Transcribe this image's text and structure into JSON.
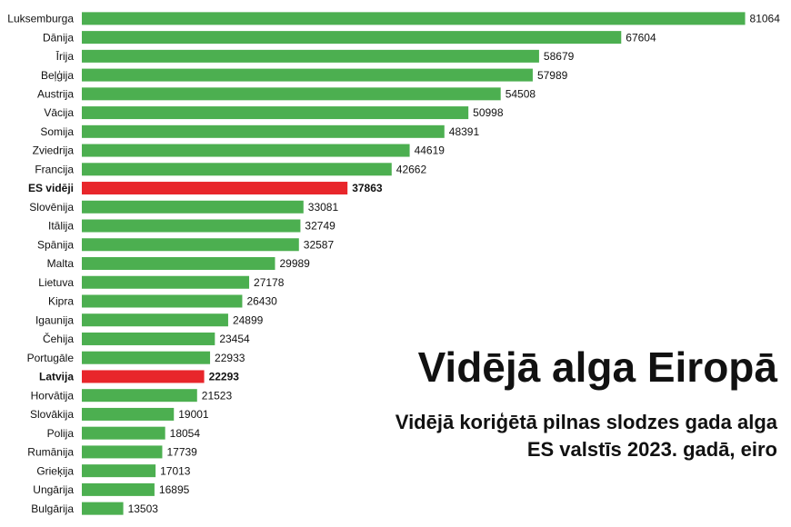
{
  "chart_data": {
    "type": "bar",
    "orientation": "horizontal",
    "title": "Vidējā alga Eiropā",
    "subtitle": [
      "Vidējā koriģētā pilnas slodzes gada alga",
      "ES valstīs 2023. gadā, eiro"
    ],
    "categories": [
      "Luksemburga",
      "Dānija",
      "Īrija",
      "Beļģija",
      "Austrija",
      "Vācija",
      "Somija",
      "Zviedrija",
      "Francija",
      "ES vidēji",
      "Slovēnija",
      "Itālija",
      "Spānija",
      "Malta",
      "Lietuva",
      "Kipra",
      "Igaunija",
      "Čehija",
      "Portugāle",
      "Latvija",
      "Horvātija",
      "Slovākija",
      "Polija",
      "Rumānija",
      "Grieķija",
      "Ungārija",
      "Bulgārija"
    ],
    "values": [
      81064,
      67604,
      58679,
      57989,
      54508,
      50998,
      48391,
      44619,
      42662,
      37863,
      33081,
      32749,
      32587,
      29989,
      27178,
      26430,
      24899,
      23454,
      22933,
      22293,
      21523,
      19001,
      18054,
      17739,
      17013,
      16895,
      13503
    ],
    "colors": [
      "#4caf50",
      "#4caf50",
      "#4caf50",
      "#4caf50",
      "#4caf50",
      "#4caf50",
      "#4caf50",
      "#4caf50",
      "#4caf50",
      "#e8262b",
      "#4caf50",
      "#4caf50",
      "#4caf50",
      "#4caf50",
      "#4caf50",
      "#4caf50",
      "#4caf50",
      "#4caf50",
      "#4caf50",
      "#e8262b",
      "#4caf50",
      "#4caf50",
      "#4caf50",
      "#4caf50",
      "#4caf50",
      "#4caf50",
      "#4caf50"
    ],
    "xlim": [
      9000,
      90000
    ]
  }
}
